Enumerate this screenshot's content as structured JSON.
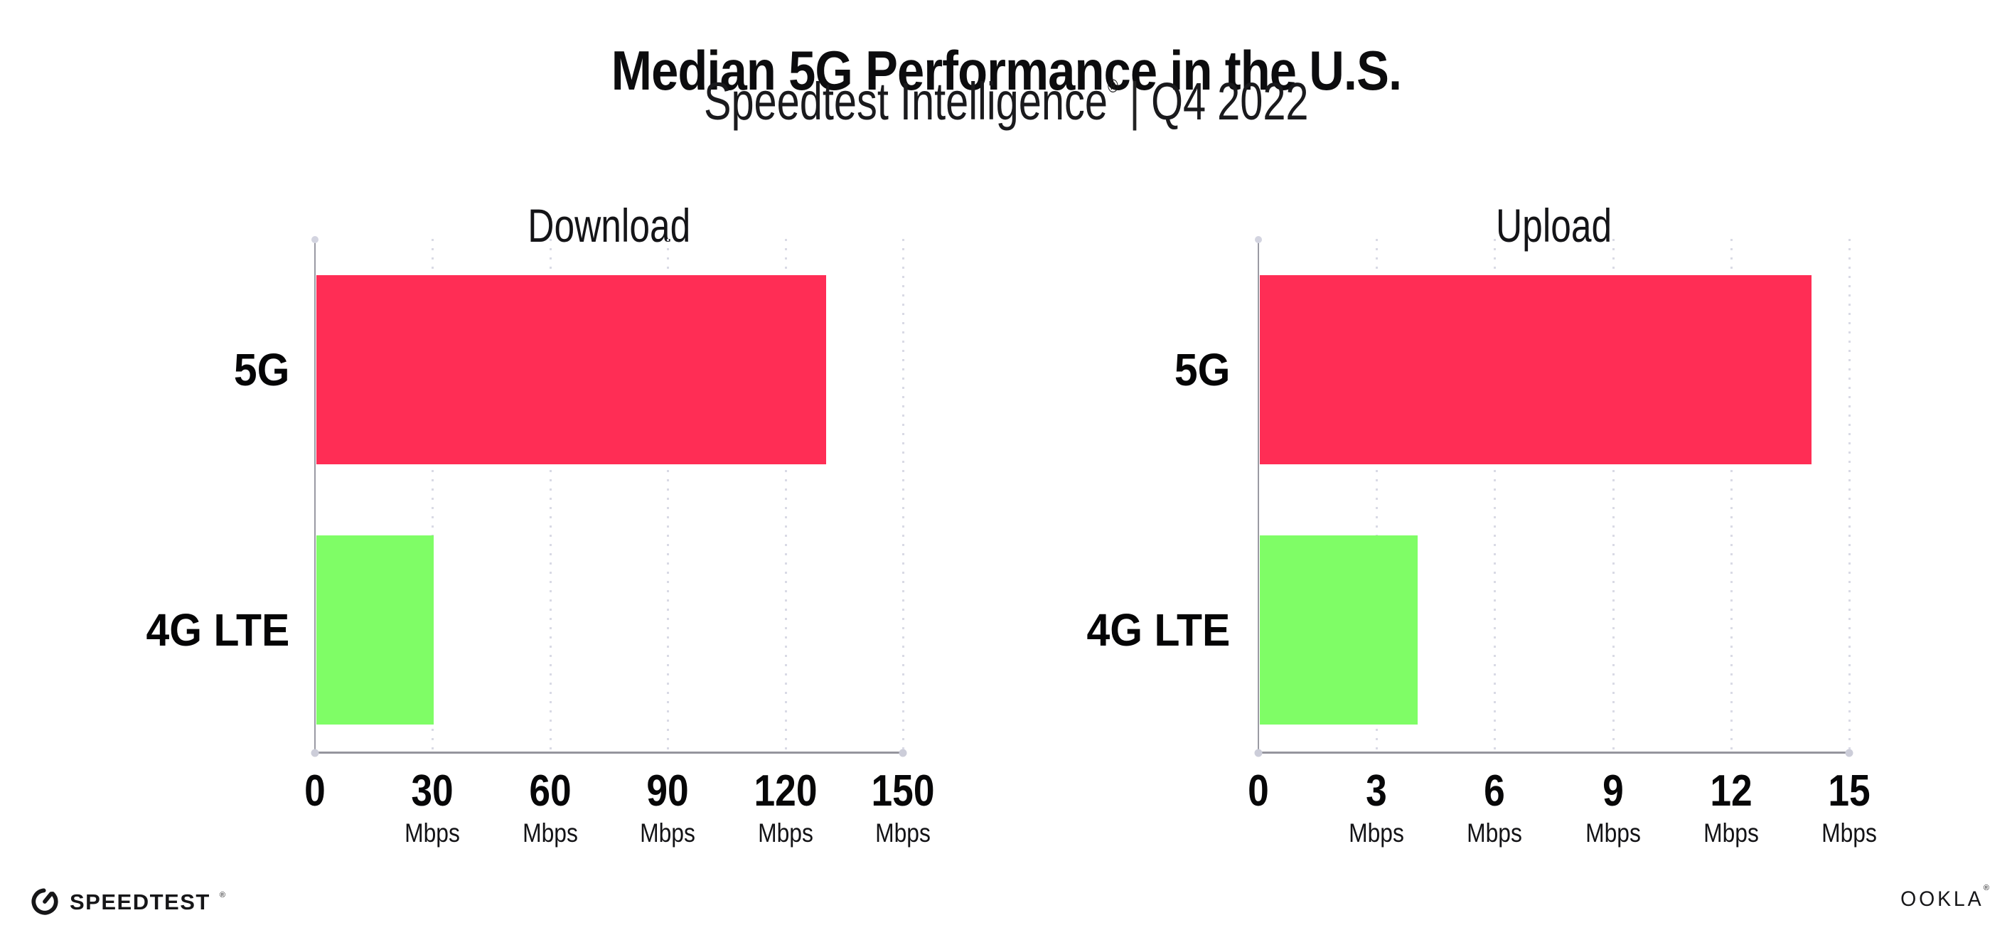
{
  "header": {
    "title": "Median 5G Performance in the U.S.",
    "subtitle": {
      "brand": "Speedtest Intelligence",
      "reg_mark": "®",
      "separator": "|",
      "period": "Q4 2022"
    }
  },
  "chart_data": [
    {
      "type": "bar",
      "orientation": "horizontal",
      "title": "Download",
      "categories": [
        "5G",
        "4G LTE"
      ],
      "values": [
        130,
        30
      ],
      "unit": "Mbps",
      "xlim": [
        0,
        150
      ],
      "xticks": [
        0,
        30,
        60,
        90,
        120,
        150
      ],
      "bar_colors": [
        "#FF2D55",
        "#7FFD66"
      ],
      "grid": "dotted-vertical-gridlines",
      "legend": "none"
    },
    {
      "type": "bar",
      "orientation": "horizontal",
      "title": "Upload",
      "categories": [
        "5G",
        "4G LTE"
      ],
      "values": [
        14,
        4
      ],
      "unit": "Mbps",
      "xlim": [
        0,
        15
      ],
      "xticks": [
        0,
        3,
        6,
        9,
        12,
        15
      ],
      "bar_colors": [
        "#FF2D55",
        "#7FFD66"
      ],
      "grid": "dotted-vertical-gridlines",
      "legend": "none"
    }
  ],
  "footer": {
    "speedtest": {
      "icon": "speedtest-gauge-icon",
      "label": "SPEEDTEST",
      "mark": "®"
    },
    "ookla": {
      "label": "OOKLA",
      "mark": "®"
    }
  },
  "colors": {
    "bar_5g": "#FF2D55",
    "bar_4g_lte": "#7FFD66",
    "gridline_dots": "#D9DAE5",
    "x_axis_line": "#95959D",
    "y_axis_line": "#9A9AA3",
    "axis_end_dots": "#CCCDD9",
    "text": "#0C0C0E",
    "background": "#FFFFFF"
  }
}
